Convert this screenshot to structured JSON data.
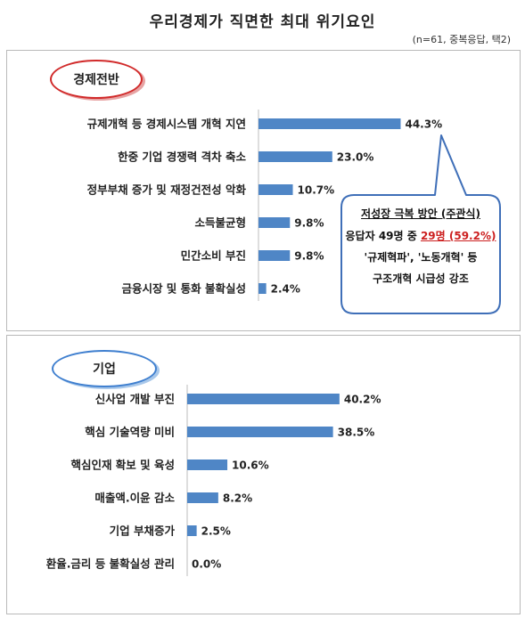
{
  "title": "우리경제가 직면한 최대 위기요인",
  "note": "(n=61, 중복응답, 택2)",
  "colors": {
    "bar": "#4f86c6",
    "red": "#cc1f1f",
    "blue": "#3f7fcf"
  },
  "chart_data": [
    {
      "type": "bar",
      "orientation": "horizontal",
      "title": "경제전반",
      "categories": [
        "규제개혁 등 경제시스템 개혁 지연",
        "한중 기업 경쟁력 격차 축소",
        "정부부채 증가 및 재정건전성 악화",
        "소득불균형",
        "민간소비 부진",
        "금융시장 및 통화 불확실성"
      ],
      "values": [
        44.3,
        23.0,
        10.7,
        9.8,
        9.8,
        2.4
      ],
      "value_labels": [
        "44.3%",
        "23.0%",
        "10.7%",
        "9.8%",
        "9.8%",
        "2.4%"
      ],
      "xlim": [
        0,
        50
      ],
      "grid": false,
      "legend": "none"
    },
    {
      "type": "bar",
      "orientation": "horizontal",
      "title": "기업",
      "categories": [
        "신사업 개발 부진",
        "핵심 기술역량 미비",
        "핵심인재 확보 및 육성",
        "매출액.이윤 감소",
        "기업 부채증가",
        "환율.금리 등 불확실성 관리"
      ],
      "values": [
        40.2,
        38.5,
        10.6,
        8.2,
        2.5,
        0.0
      ],
      "value_labels": [
        "40.2%",
        "38.5%",
        "10.6%",
        "8.2%",
        "2.5%",
        "0.0%"
      ],
      "xlim": [
        0,
        50
      ],
      "grid": false,
      "legend": "none"
    }
  ],
  "callout": {
    "heading": "저성장 극복 방안 (주관식)",
    "line2_pre": "응답자 49명 중 ",
    "line2_highlight": "29명 (59.2%)",
    "line3": "'규제혁파', '노동개혁' 등",
    "line4": "구조개혁 시급성 강조"
  }
}
